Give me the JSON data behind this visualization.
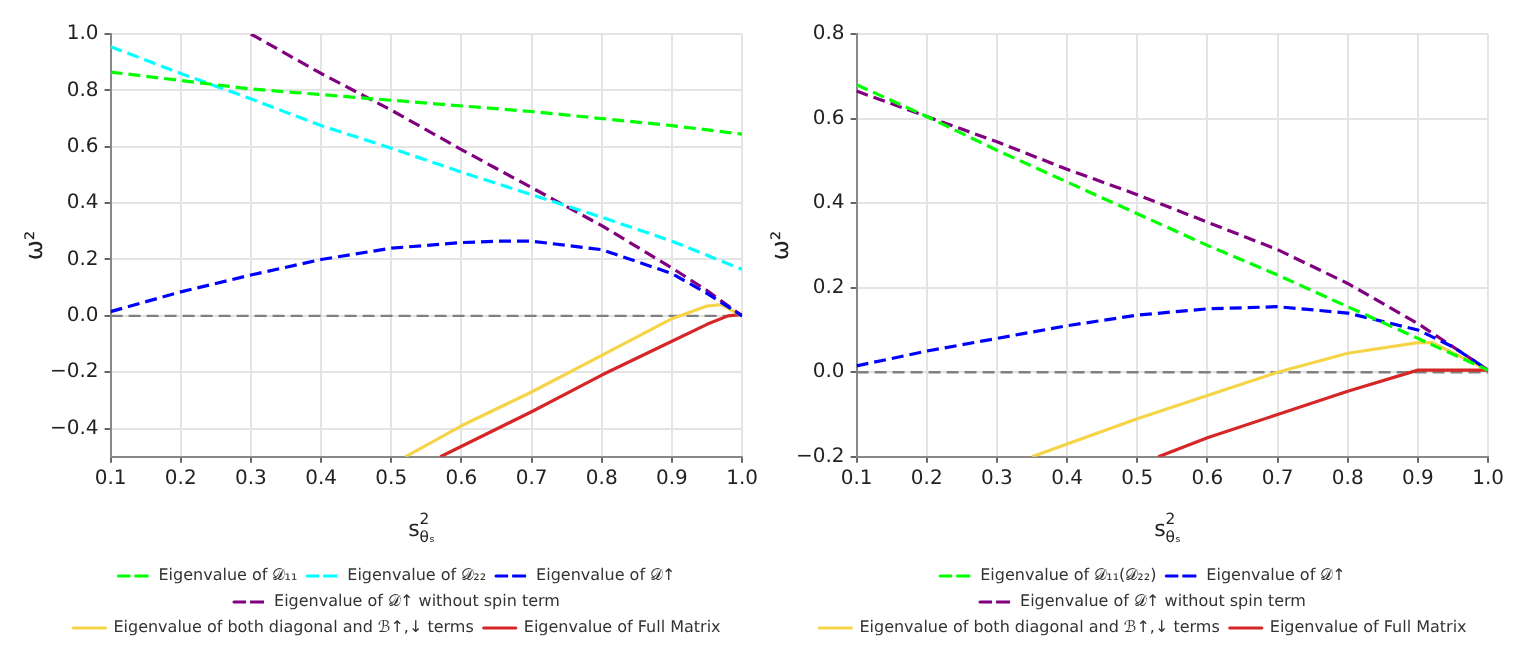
{
  "chart_data": [
    {
      "type": "line",
      "xlabel": "s$_{θₛ}$$^{2}$",
      "ylabel": "ω²",
      "xlim": [
        0.1,
        1.0
      ],
      "ylim": [
        -0.5,
        1.0
      ],
      "xticks": [
        0.1,
        0.2,
        0.3,
        0.4,
        0.5,
        0.6,
        0.7,
        0.8,
        0.9,
        {
          "value": 1,
          "label": "1.0"
        }
      ],
      "yticks": [
        {
          "value": -0.4,
          "label": "−0.4"
        },
        {
          "value": -0.2,
          "label": "−0.2"
        },
        {
          "value": 0,
          "label": "0.0"
        },
        0.2,
        0.4,
        0.6,
        0.8,
        {
          "value": 1,
          "label": "1.0"
        }
      ],
      "grid": true,
      "legend": "bottom",
      "marker": "none",
      "ref_lines": [
        {
          "axis": "y",
          "value": 0,
          "color": "#808080",
          "line_style": "dashed"
        }
      ],
      "series": [
        {
          "name": "Eigenvalue of 𝒟₁₁",
          "color": "#00ff00",
          "line_style": "dashed",
          "x": [
            0.1,
            0.3,
            0.5,
            0.7,
            0.9,
            1.0
          ],
          "values": [
            0.865,
            0.805,
            0.765,
            0.725,
            0.675,
            0.645
          ]
        },
        {
          "name": "Eigenvalue of 𝒟₂₂",
          "color": "#00ffff",
          "line_style": "dashed",
          "x": [
            0.1,
            0.2,
            0.3,
            0.4,
            0.5,
            0.6,
            0.7,
            0.8,
            0.9,
            1.0
          ],
          "values": [
            0.955,
            0.86,
            0.77,
            0.675,
            0.595,
            0.51,
            0.43,
            0.35,
            0.265,
            0.165
          ]
        },
        {
          "name": "Eigenvalue of 𝒟↑",
          "color": "#0000ff",
          "line_style": "dashed",
          "x": [
            0.1,
            0.2,
            0.3,
            0.4,
            0.5,
            0.6,
            0.65,
            0.7,
            0.8,
            0.9,
            0.95,
            1.0
          ],
          "values": [
            0.015,
            0.085,
            0.145,
            0.2,
            0.24,
            0.26,
            0.265,
            0.265,
            0.235,
            0.15,
            0.08,
            0.0
          ]
        },
        {
          "name": "Eigenvalue of 𝒟↑ without spin term",
          "color": "#800080",
          "line_style": "dashed",
          "x": [
            0.3,
            0.4,
            0.5,
            0.6,
            0.7,
            0.8,
            0.9,
            0.95,
            1.0
          ],
          "values": [
            1.0,
            0.86,
            0.73,
            0.59,
            0.455,
            0.32,
            0.17,
            0.09,
            0.0
          ]
        },
        {
          "name": "Eigenvalue of both diagonal and ℬ↑,↓ terms",
          "color": "#f5d547",
          "line_style": "solid",
          "x": [
            0.52,
            0.6,
            0.7,
            0.8,
            0.9,
            0.95,
            0.97,
            1.0
          ],
          "values": [
            -0.5,
            -0.39,
            -0.27,
            -0.14,
            -0.01,
            0.035,
            0.04,
            0.0
          ]
        },
        {
          "name": "Eigenvalue of Full Matrix",
          "color": "#d62728",
          "line_style": "solid",
          "x": [
            0.57,
            0.7,
            0.8,
            0.9,
            0.95,
            0.98,
            1.0
          ],
          "values": [
            -0.5,
            -0.34,
            -0.21,
            -0.09,
            -0.03,
            0.0,
            0.005
          ]
        }
      ]
    },
    {
      "type": "line",
      "xlabel": "s$_{θₛ}$$^{2}$",
      "ylabel": "ω²",
      "xlim": [
        0.1,
        1.0
      ],
      "ylim": [
        -0.2,
        0.8
      ],
      "xticks": [
        0.1,
        0.2,
        0.3,
        0.4,
        0.5,
        0.6,
        0.7,
        0.8,
        0.9,
        {
          "value": 1,
          "label": "1.0"
        }
      ],
      "yticks": [
        {
          "value": -0.2,
          "label": "−0.2"
        },
        {
          "value": 0,
          "label": "0.0"
        },
        0.2,
        0.4,
        0.6,
        0.8
      ],
      "grid": true,
      "legend": "bottom",
      "marker": "none",
      "ref_lines": [
        {
          "axis": "y",
          "value": 0,
          "color": "#808080",
          "line_style": "dashed"
        }
      ],
      "series": [
        {
          "name": "Eigenvalue of 𝒟₁₁(𝒟₂₂)",
          "color": "#00ff00",
          "line_style": "dashed",
          "x": [
            0.1,
            0.2,
            0.3,
            0.4,
            0.5,
            0.6,
            0.7,
            0.8,
            0.9,
            1.0
          ],
          "values": [
            0.68,
            0.605,
            0.525,
            0.45,
            0.375,
            0.3,
            0.23,
            0.155,
            0.08,
            0.005
          ]
        },
        {
          "name": "Eigenvalue of 𝒟↑",
          "color": "#0000ff",
          "line_style": "dashed",
          "x": [
            0.1,
            0.2,
            0.3,
            0.4,
            0.5,
            0.6,
            0.7,
            0.8,
            0.9,
            0.95,
            1.0
          ],
          "values": [
            0.015,
            0.05,
            0.08,
            0.11,
            0.135,
            0.15,
            0.155,
            0.14,
            0.1,
            0.06,
            0.005
          ]
        },
        {
          "name": "Eigenvalue of 𝒟↑ without spin term",
          "color": "#800080",
          "line_style": "dashed",
          "x": [
            0.1,
            0.2,
            0.3,
            0.4,
            0.5,
            0.6,
            0.7,
            0.8,
            0.9,
            0.95,
            1.0
          ],
          "values": [
            0.665,
            0.605,
            0.545,
            0.48,
            0.42,
            0.355,
            0.29,
            0.21,
            0.115,
            0.06,
            0.005
          ]
        },
        {
          "name": "Eigenvalue of both diagonal and ℬ↑,↓ terms",
          "color": "#f5d547",
          "line_style": "solid",
          "x": [
            0.35,
            0.4,
            0.5,
            0.6,
            0.7,
            0.8,
            0.9,
            0.92,
            1.0
          ],
          "values": [
            -0.2,
            -0.17,
            -0.11,
            -0.055,
            0.0,
            0.045,
            0.07,
            0.07,
            0.005
          ]
        },
        {
          "name": "Eigenvalue of Full Matrix",
          "color": "#d62728",
          "line_style": "solid",
          "x": [
            0.53,
            0.6,
            0.7,
            0.8,
            0.9,
            1.0
          ],
          "values": [
            -0.2,
            -0.155,
            -0.1,
            -0.045,
            0.005,
            0.005
          ]
        }
      ]
    }
  ]
}
